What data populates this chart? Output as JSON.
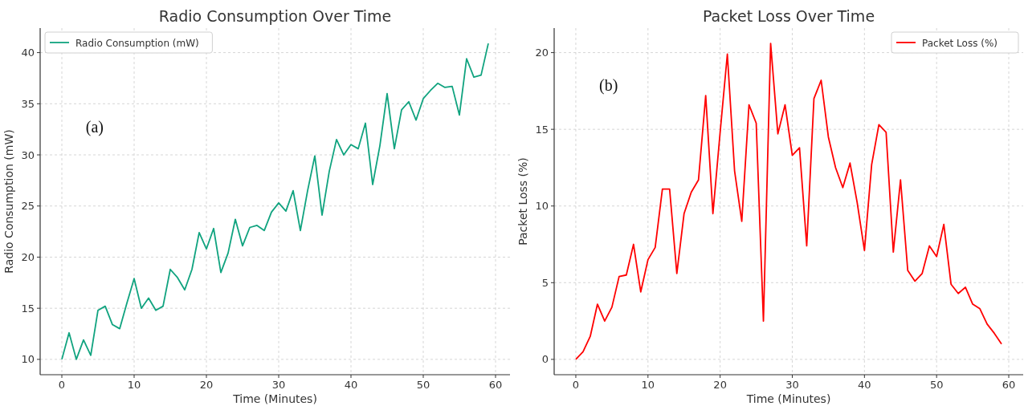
{
  "chart_data": [
    {
      "type": "line",
      "title": "Radio Consumption Over Time",
      "xlabel": "Time (Minutes)",
      "ylabel": "Radio Consumption (mW)",
      "annotations": [
        "(a)"
      ],
      "x": [
        0,
        1,
        2,
        3,
        4,
        5,
        6,
        7,
        8,
        9,
        10,
        11,
        12,
        13,
        14,
        15,
        16,
        17,
        18,
        19,
        20,
        21,
        22,
        23,
        24,
        25,
        26,
        27,
        28,
        29,
        30,
        31,
        32,
        33,
        34,
        35,
        36,
        37,
        38,
        39,
        40,
        41,
        42,
        43,
        44,
        45,
        46,
        47,
        48,
        49,
        50,
        51,
        52,
        53,
        54,
        55,
        56,
        57,
        58,
        59
      ],
      "series": [
        {
          "name": "Radio Consumption (mW)",
          "color": "#10a37f",
          "values": [
            10,
            12.6,
            10,
            11.9,
            10.4,
            14.8,
            15.2,
            13.4,
            13,
            15.5,
            17.9,
            15,
            16,
            14.8,
            15.2,
            18.8,
            18,
            16.8,
            18.8,
            22.4,
            20.8,
            22.8,
            18.5,
            20.4,
            23.7,
            21.1,
            22.9,
            23.1,
            22.6,
            24.4,
            25.3,
            24.5,
            26.5,
            22.6,
            26.5,
            29.9,
            24.1,
            28.4,
            31.5,
            30,
            31,
            30.6,
            33.1,
            27.1,
            30.9,
            36,
            30.6,
            34.4,
            35.2,
            33.4,
            35.5,
            36.3,
            37,
            36.6,
            36.7,
            33.9,
            39.4,
            37.6,
            37.8,
            40.9
          ]
        }
      ],
      "xlim": [
        -3,
        62
      ],
      "xticks": [
        0,
        10,
        20,
        30,
        40,
        50,
        60
      ],
      "ylim": [
        8.5,
        42.4
      ],
      "yticks": [
        10,
        15,
        20,
        25,
        30,
        35,
        40
      ],
      "grid": true,
      "legend": "top left",
      "marker": "none",
      "line_style": "solid"
    },
    {
      "type": "line",
      "title": "Packet Loss Over Time",
      "xlabel": "Time (Minutes)",
      "ylabel": "Packet Loss (%)",
      "annotations": [
        "(b)"
      ],
      "x": [
        0,
        1,
        2,
        3,
        4,
        5,
        6,
        7,
        8,
        9,
        10,
        11,
        12,
        13,
        14,
        15,
        16,
        17,
        18,
        19,
        20,
        21,
        22,
        23,
        24,
        25,
        26,
        27,
        28,
        29,
        30,
        31,
        32,
        33,
        34,
        35,
        36,
        37,
        38,
        39,
        40,
        41,
        42,
        43,
        44,
        45,
        46,
        47,
        48,
        49,
        50,
        51,
        52,
        53,
        54,
        55,
        56,
        57,
        58,
        59
      ],
      "series": [
        {
          "name": "Packet Loss (%)",
          "color": "#ff0000",
          "values": [
            0,
            0.5,
            1.5,
            3.6,
            2.5,
            3.4,
            5.4,
            5.5,
            7.5,
            4.4,
            6.5,
            7.3,
            11.1,
            11.1,
            5.6,
            9.5,
            10.9,
            11.7,
            17.2,
            9.5,
            14.8,
            19.9,
            12.3,
            9,
            16.6,
            15.4,
            2.5,
            20.6,
            14.7,
            16.6,
            13.3,
            13.8,
            7.4,
            17,
            18.2,
            14.5,
            12.5,
            11.2,
            12.8,
            10.2,
            7.1,
            12.7,
            15.3,
            14.8,
            7,
            11.7,
            5.8,
            5.1,
            5.6,
            7.4,
            6.7,
            8.8,
            4.9,
            4.3,
            4.7,
            3.6,
            3.3,
            2.3,
            1.7,
            1
          ]
        }
      ],
      "xlim": [
        -3,
        62
      ],
      "xticks": [
        0,
        10,
        20,
        30,
        40,
        50,
        60
      ],
      "ylim": [
        -1,
        21.6
      ],
      "yticks": [
        0,
        5,
        10,
        15,
        20
      ],
      "grid": true,
      "legend": "top right",
      "marker": "none",
      "line_style": "solid"
    }
  ]
}
